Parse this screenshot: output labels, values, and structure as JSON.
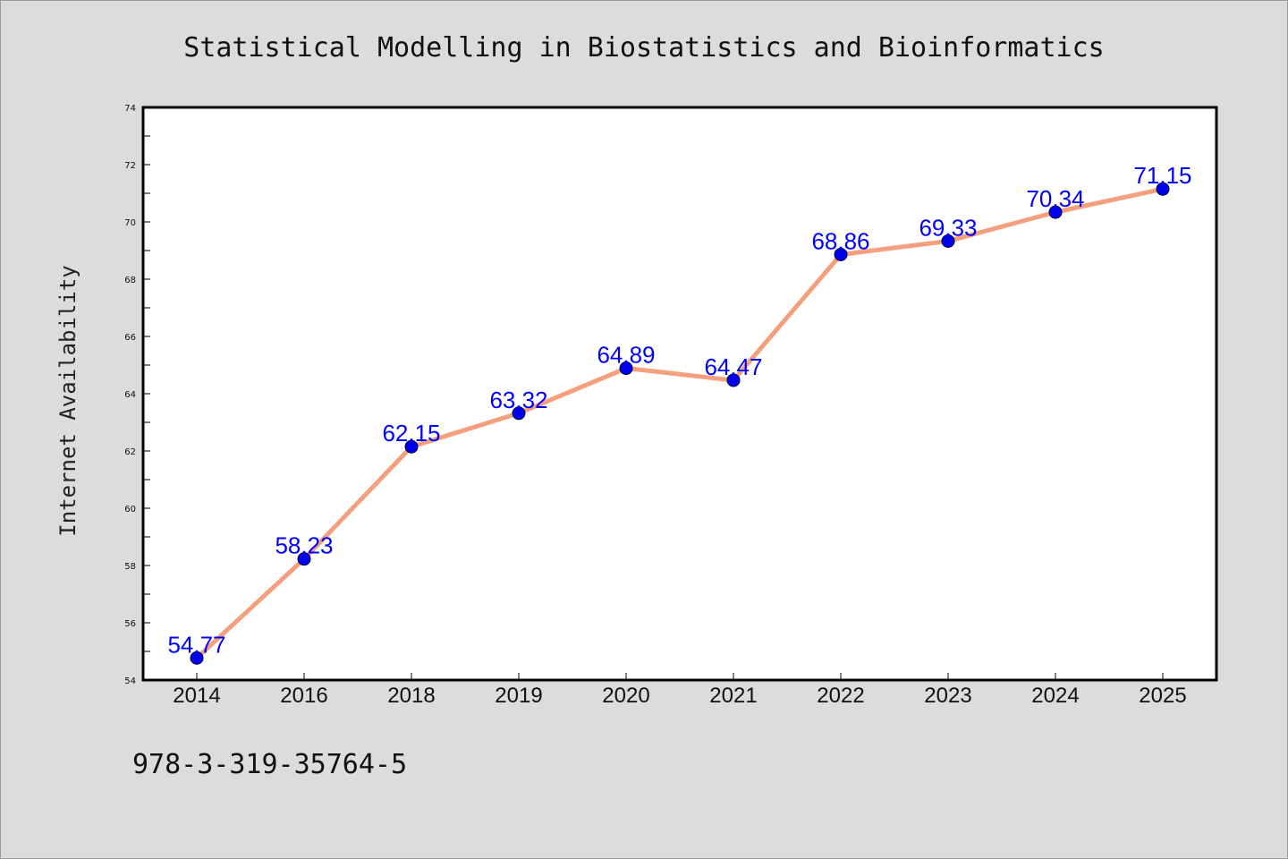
{
  "chart_data": {
    "type": "line",
    "title": "Statistical Modelling in Biostatistics and Bioinformatics",
    "xlabel": "",
    "ylabel": "Internet Availability",
    "categories": [
      "2014",
      "2016",
      "2018",
      "2019",
      "2020",
      "2021",
      "2022",
      "2023",
      "2024",
      "2025"
    ],
    "series": [
      {
        "values": [
          54.77,
          58.23,
          62.15,
          63.32,
          64.89,
          64.47,
          68.86,
          69.33,
          70.34,
          71.15
        ],
        "labels": [
          "54.77",
          "58.23",
          "62.15",
          "63.32",
          "64.89",
          "64.47",
          "68.86",
          "69.33",
          "70.34",
          "71.15"
        ],
        "line_color": "#f4a07e",
        "marker_color": "#0000ee"
      }
    ],
    "ylim": [
      54,
      74
    ],
    "yticks": [
      "54",
      "56",
      "58",
      "60",
      "62",
      "64",
      "66",
      "68",
      "70",
      "72",
      "74"
    ],
    "grid": false,
    "legend": "none"
  },
  "footnote": "978-3-319-35764-5",
  "colors": {
    "background": "#dcdcdc",
    "plot_background": "#ffffff",
    "axis": "#000000"
  }
}
